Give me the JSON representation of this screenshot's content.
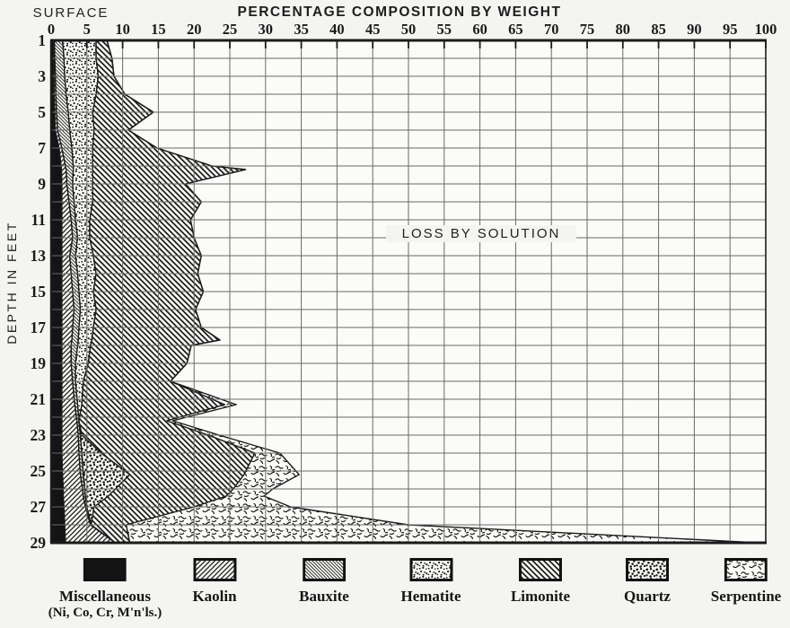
{
  "page": {
    "background": "#f4f4f0",
    "ink": "#1b1b1b",
    "grid_color": "#6a6a6a"
  },
  "header": {
    "surface_label": "SURFACE",
    "title": "PERCENTAGE COMPOSITION BY WEIGHT"
  },
  "y_axis": {
    "label": "DEPTH IN FEET",
    "tick_labels": [
      1,
      3,
      5,
      7,
      9,
      11,
      13,
      15,
      17,
      19,
      21,
      23,
      25,
      27,
      29
    ]
  },
  "x_axis": {
    "tick_labels": [
      0,
      5,
      10,
      15,
      20,
      25,
      30,
      35,
      40,
      45,
      50,
      55,
      60,
      65,
      70,
      75,
      80,
      85,
      90,
      95,
      100
    ]
  },
  "chart_data": {
    "type": "area",
    "variant": "horizontal-stacked-depth-profile",
    "title": "PERCENTAGE COMPOSITION BY WEIGHT",
    "xlabel": "PERCENTAGE COMPOSITION BY WEIGHT",
    "ylabel": "DEPTH IN FEET",
    "x_range": [
      0,
      100
    ],
    "x_tick_step": 5,
    "depth_range": [
      1,
      29
    ],
    "depth_grid_step": 1,
    "grid": "on",
    "annotation": {
      "text": "LOSS BY SOLUTION",
      "x_percent": 60,
      "depth": 11.9
    },
    "remainder_label": "LOSS BY SOLUTION",
    "series": [
      {
        "name": "Miscellaneous (Ni, Co, Cr, M'n'ls.)",
        "pattern": "misc"
      },
      {
        "name": "Kaolin",
        "pattern": "kaolin"
      },
      {
        "name": "Bauxite",
        "pattern": "bauxite"
      },
      {
        "name": "Hematite",
        "pattern": "hematite"
      },
      {
        "name": "Quartz",
        "pattern": "quartz"
      },
      {
        "name": "Limonite",
        "pattern": "limonite"
      },
      {
        "name": "Serpentine",
        "pattern": "serpentine"
      }
    ],
    "samples_note": "cumulative percent boundaries, stack order misc->kaolin->bauxite->hematite->quartz->limonite->serpentine; remainder to 100% is loss by solution",
    "samples": [
      {
        "depth": 1,
        "cumulative": [
          0.3,
          0.45,
          1.6,
          6.3,
          6.3,
          7.8,
          7.8
        ]
      },
      {
        "depth": 2,
        "cumulative": [
          0.35,
          0.5,
          1.8,
          6.3,
          6.3,
          8.5,
          8.5
        ]
      },
      {
        "depth": 3,
        "cumulative": [
          0.4,
          0.6,
          1.9,
          6.6,
          6.6,
          8.8,
          8.8
        ]
      },
      {
        "depth": 4,
        "cumulative": [
          0.4,
          0.65,
          2.1,
          6.3,
          6.3,
          10.3,
          10.3
        ]
      },
      {
        "depth": 5,
        "cumulative": [
          0.5,
          0.75,
          2.4,
          5.8,
          5.8,
          14.3,
          14.3
        ]
      },
      {
        "depth": 6,
        "cumulative": [
          0.55,
          0.9,
          2.6,
          6.0,
          6.0,
          10.8,
          10.8
        ]
      },
      {
        "depth": 7,
        "cumulative": [
          1.1,
          1.5,
          2.9,
          5.8,
          5.8,
          14.8,
          14.8
        ]
      },
      {
        "depth": 8,
        "cumulative": [
          1.4,
          2.0,
          3.1,
          5.8,
          5.8,
          22.5,
          22.5
        ]
      },
      {
        "depth": 8.2,
        "cumulative": [
          1.45,
          2.1,
          3.1,
          5.8,
          5.8,
          27.2,
          27.2
        ]
      },
      {
        "depth": 9,
        "cumulative": [
          1.5,
          2.2,
          3.0,
          5.8,
          5.8,
          18.8,
          18.8
        ]
      },
      {
        "depth": 10,
        "cumulative": [
          1.5,
          2.5,
          3.2,
          5.8,
          5.8,
          21.0,
          21.0
        ]
      },
      {
        "depth": 11,
        "cumulative": [
          1.5,
          2.8,
          3.4,
          5.4,
          5.4,
          19.5,
          19.5
        ]
      },
      {
        "depth": 12,
        "cumulative": [
          1.5,
          3.0,
          3.7,
          5.4,
          5.4,
          20.0,
          20.0
        ]
      },
      {
        "depth": 13,
        "cumulative": [
          1.5,
          2.6,
          3.4,
          5.9,
          5.9,
          21.0,
          21.0
        ]
      },
      {
        "depth": 14,
        "cumulative": [
          1.5,
          2.8,
          3.7,
          6.3,
          6.3,
          20.5,
          20.5
        ]
      },
      {
        "depth": 15,
        "cumulative": [
          1.5,
          3.0,
          3.9,
          5.9,
          5.9,
          21.3,
          21.3
        ]
      },
      {
        "depth": 16,
        "cumulative": [
          1.5,
          3.2,
          4.1,
          6.3,
          6.3,
          20.2,
          20.2
        ]
      },
      {
        "depth": 17,
        "cumulative": [
          1.5,
          3.0,
          3.9,
          5.9,
          5.9,
          21.0,
          21.0
        ]
      },
      {
        "depth": 17.7,
        "cumulative": [
          1.5,
          2.9,
          3.8,
          5.7,
          5.7,
          23.6,
          23.6
        ]
      },
      {
        "depth": 18,
        "cumulative": [
          1.5,
          2.8,
          3.7,
          5.5,
          5.5,
          19.6,
          19.6
        ]
      },
      {
        "depth": 19,
        "cumulative": [
          1.5,
          2.8,
          3.4,
          5.2,
          5.2,
          19.0,
          19.0
        ]
      },
      {
        "depth": 20,
        "cumulative": [
          1.5,
          3.0,
          3.4,
          4.5,
          4.5,
          16.7,
          16.7
        ]
      },
      {
        "depth": 21.3,
        "cumulative": [
          1.5,
          3.3,
          3.7,
          4.3,
          4.3,
          24.3,
          25.9
        ]
      },
      {
        "depth": 22.2,
        "cumulative": [
          1.5,
          3.6,
          3.9,
          3.9,
          3.9,
          16.2,
          17.0
        ]
      },
      {
        "depth": 23,
        "cumulative": [
          1.5,
          3.8,
          4.1,
          4.1,
          4.3,
          22.0,
          23.5
        ]
      },
      {
        "depth": 24,
        "cumulative": [
          1.5,
          3.9,
          4.3,
          4.3,
          7.0,
          28.5,
          32.0
        ]
      },
      {
        "depth": 25.2,
        "cumulative": [
          1.6,
          4.1,
          4.5,
          4.5,
          11.0,
          27.0,
          34.7
        ]
      },
      {
        "depth": 26,
        "cumulative": [
          1.7,
          4.4,
          4.7,
          4.7,
          9.0,
          25.5,
          31.0
        ]
      },
      {
        "depth": 26.4,
        "cumulative": [
          1.7,
          4.5,
          4.8,
          4.8,
          8.0,
          24.5,
          29.8
        ]
      },
      {
        "depth": 27,
        "cumulative": [
          1.8,
          4.8,
          5.0,
          5.0,
          6.0,
          20.0,
          33.5
        ]
      },
      {
        "depth": 28,
        "cumulative": [
          1.9,
          5.5,
          5.6,
          5.6,
          5.6,
          10.5,
          50.0
        ]
      },
      {
        "depth": 29,
        "cumulative": [
          2.0,
          9.0,
          9.0,
          9.0,
          9.0,
          11.0,
          99.0
        ]
      }
    ]
  },
  "legend": {
    "items": [
      {
        "label": "Miscellaneous",
        "sublabel": "(Ni, Co, Cr, M'n'ls.)",
        "pattern": "misc"
      },
      {
        "label": "Kaolin",
        "pattern": "kaolin"
      },
      {
        "label": "Bauxite",
        "pattern": "bauxite"
      },
      {
        "label": "Hematite",
        "pattern": "hematite"
      },
      {
        "label": "Limonite",
        "pattern": "limonite"
      },
      {
        "label": "Quartz",
        "pattern": "quartz"
      },
      {
        "label": "Serpentine",
        "pattern": "serpentine"
      }
    ]
  }
}
